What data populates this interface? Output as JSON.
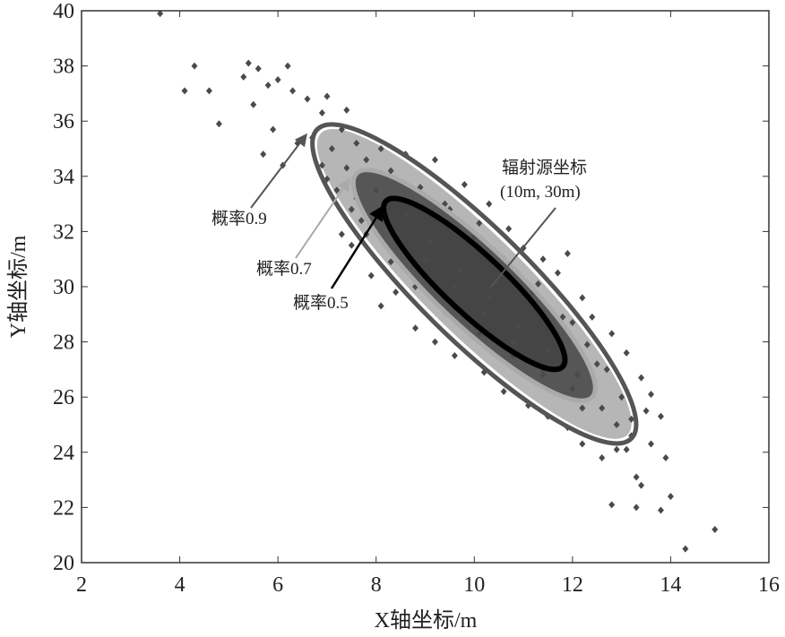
{
  "chart_data": {
    "type": "scatter",
    "xlabel": "X轴坐标/m",
    "ylabel": "Y轴坐标/m",
    "xlim": [
      2,
      16
    ],
    "ylim": [
      20,
      40
    ],
    "xticks": [
      "2",
      "4",
      "6",
      "8",
      "10",
      "12",
      "14",
      "16"
    ],
    "yticks": [
      "20",
      "22",
      "24",
      "26",
      "28",
      "30",
      "32",
      "34",
      "36",
      "38",
      "40"
    ],
    "grid": false,
    "colors": {
      "points": "#4a4a4a",
      "ellipse_0.9": "#555555",
      "ellipse_0.7": "#aaaaaa",
      "ellipse_0.5": "#000000",
      "fill": "#454545"
    },
    "source": {
      "label_line1": "辐射源坐标",
      "label_line2": "(10m, 30m)",
      "x": 10,
      "y": 30
    },
    "ellipses": [
      {
        "probability": 0.9,
        "label": "概率0.9",
        "end_a": [
          6.8,
          35.7
        ],
        "end_b": [
          13.2,
          24.5
        ],
        "color": "#555555"
      },
      {
        "probability": 0.7,
        "label": "概率0.7",
        "end_a": [
          7.6,
          34.1
        ],
        "end_b": [
          12.4,
          26.0
        ],
        "color": "#aaaaaa"
      },
      {
        "probability": 0.5,
        "label": "概率0.5",
        "end_a": [
          8.2,
          33.1
        ],
        "end_b": [
          11.8,
          27.1
        ],
        "color": "#000000"
      }
    ],
    "points": [
      [
        3.6,
        39.9
      ],
      [
        4.1,
        37.1
      ],
      [
        4.3,
        38.0
      ],
      [
        4.6,
        37.1
      ],
      [
        4.8,
        35.9
      ],
      [
        5.3,
        37.6
      ],
      [
        5.4,
        38.1
      ],
      [
        5.6,
        37.9
      ],
      [
        5.8,
        37.3
      ],
      [
        6.0,
        37.5
      ],
      [
        6.2,
        38.0
      ],
      [
        6.3,
        37.1
      ],
      [
        5.5,
        36.6
      ],
      [
        5.9,
        35.7
      ],
      [
        6.1,
        34.4
      ],
      [
        5.7,
        34.8
      ],
      [
        6.6,
        36.8
      ],
      [
        6.9,
        36.3
      ],
      [
        7.0,
        36.9
      ],
      [
        7.4,
        36.4
      ],
      [
        7.3,
        35.7
      ],
      [
        6.4,
        35.2
      ],
      [
        7.6,
        35.2
      ],
      [
        8.1,
        35.0
      ],
      [
        8.6,
        34.8
      ],
      [
        9.2,
        34.6
      ],
      [
        9.8,
        33.7
      ],
      [
        10.3,
        33.0
      ],
      [
        10.1,
        32.3
      ],
      [
        11.0,
        31.4
      ],
      [
        11.4,
        31.0
      ],
      [
        11.7,
        30.5
      ],
      [
        11.9,
        31.2
      ],
      [
        12.2,
        29.6
      ],
      [
        12.4,
        28.9
      ],
      [
        12.8,
        28.3
      ],
      [
        13.1,
        27.6
      ],
      [
        13.4,
        26.7
      ],
      [
        13.6,
        26.1
      ],
      [
        13.8,
        25.3
      ],
      [
        13.5,
        25.5
      ],
      [
        13.9,
        23.8
      ],
      [
        13.6,
        24.3
      ],
      [
        13.3,
        23.1
      ],
      [
        13.4,
        22.8
      ],
      [
        12.8,
        22.1
      ],
      [
        13.3,
        22.0
      ],
      [
        13.8,
        21.9
      ],
      [
        14.0,
        22.4
      ],
      [
        14.3,
        20.5
      ],
      [
        14.9,
        21.2
      ],
      [
        12.6,
        23.8
      ],
      [
        12.2,
        24.3
      ],
      [
        11.9,
        24.9
      ],
      [
        12.9,
        24.1
      ],
      [
        13.2,
        24.6
      ],
      [
        7.3,
        31.9
      ],
      [
        7.5,
        31.5
      ],
      [
        7.7,
        32.4
      ],
      [
        7.9,
        30.4
      ],
      [
        8.1,
        29.3
      ],
      [
        8.4,
        29.8
      ],
      [
        8.8,
        28.5
      ],
      [
        9.2,
        28.0
      ],
      [
        9.6,
        27.5
      ],
      [
        10.2,
        26.9
      ],
      [
        10.6,
        26.2
      ],
      [
        11.1,
        25.7
      ],
      [
        11.5,
        25.3
      ],
      [
        7.2,
        33.5
      ],
      [
        6.9,
        34.4
      ],
      [
        7.4,
        34.3
      ],
      [
        9.4,
        33.0
      ],
      [
        10.7,
        32.1
      ],
      [
        11.3,
        30.1
      ],
      [
        12.0,
        28.7
      ],
      [
        12.5,
        27.2
      ],
      [
        6.7,
        35.4
      ],
      [
        7.1,
        35.0
      ],
      [
        7.8,
        34.6
      ],
      [
        8.3,
        34.2
      ],
      [
        8.9,
        33.6
      ],
      [
        9.5,
        32.8
      ],
      [
        10.0,
        31.8
      ],
      [
        10.6,
        31.0
      ],
      [
        11.2,
        29.8
      ],
      [
        11.8,
        28.9
      ],
      [
        12.3,
        27.9
      ],
      [
        12.7,
        27.0
      ],
      [
        13.0,
        26.0
      ],
      [
        13.2,
        25.2
      ],
      [
        12.6,
        25.6
      ],
      [
        12.0,
        26.3
      ],
      [
        11.4,
        26.8
      ],
      [
        10.8,
        27.5
      ],
      [
        10.1,
        28.3
      ],
      [
        9.4,
        29.1
      ],
      [
        8.8,
        30.0
      ],
      [
        8.3,
        30.9
      ],
      [
        7.8,
        31.9
      ],
      [
        7.5,
        32.8
      ],
      [
        7.0,
        33.9
      ],
      [
        8.0,
        33.5
      ],
      [
        8.6,
        32.6
      ],
      [
        9.1,
        31.6
      ],
      [
        9.7,
        30.6
      ],
      [
        10.3,
        29.6
      ],
      [
        10.9,
        28.6
      ],
      [
        11.5,
        27.7
      ],
      [
        12.1,
        26.8
      ],
      [
        7.6,
        33.2
      ],
      [
        8.4,
        31.9
      ],
      [
        9.0,
        31.0
      ],
      [
        9.6,
        30.0
      ],
      [
        10.2,
        29.0
      ],
      [
        10.8,
        28.0
      ],
      [
        11.4,
        27.0
      ],
      [
        12.2,
        25.6
      ],
      [
        12.9,
        25.0
      ],
      [
        13.1,
        24.1
      ]
    ]
  }
}
